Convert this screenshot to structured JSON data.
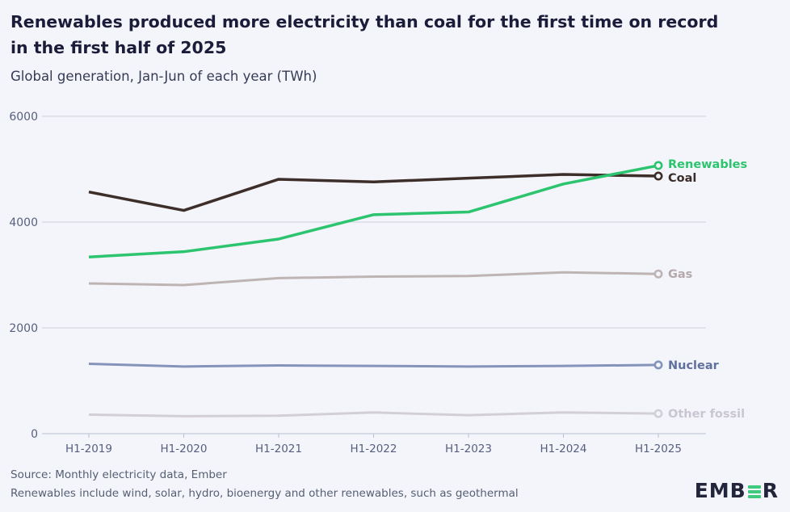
{
  "header": {
    "title_lines": [
      "Renewables produced more electricity than coal for the first time on record",
      "in the first half of 2025"
    ],
    "subtitle": "Global generation, Jan-Jun of each year (TWh)"
  },
  "chart_data": {
    "type": "line",
    "categories": [
      "H1-2019",
      "H1-2020",
      "H1-2021",
      "H1-2022",
      "H1-2023",
      "H1-2024",
      "H1-2025"
    ],
    "series": [
      {
        "name": "Renewables",
        "color": "#2cc46e",
        "label_color": "#2cc46e",
        "width": 3.5,
        "values": [
          3340,
          3440,
          3680,
          4140,
          4190,
          4720,
          5070
        ]
      },
      {
        "name": "Coal",
        "color": "#3d2e2a",
        "label_color": "#3a2d29",
        "width": 3.5,
        "values": [
          4570,
          4220,
          4810,
          4760,
          4830,
          4900,
          4870
        ]
      },
      {
        "name": "Gas",
        "color": "#beb4b4",
        "label_color": "#b3a9ab",
        "width": 3,
        "values": [
          2840,
          2810,
          2940,
          2970,
          2980,
          3050,
          3020
        ]
      },
      {
        "name": "Nuclear",
        "color": "#8393b9",
        "label_color": "#5f719e",
        "width": 3,
        "values": [
          1320,
          1270,
          1290,
          1280,
          1270,
          1280,
          1300
        ]
      },
      {
        "name": "Other fossil",
        "color": "#d3cfd7",
        "label_color": "#c9c6d1",
        "width": 3,
        "values": [
          360,
          330,
          340,
          400,
          350,
          400,
          380
        ]
      }
    ],
    "ylim": [
      0,
      6000
    ],
    "yticks": [
      0,
      2000,
      4000,
      6000
    ],
    "grid": true,
    "legend_position": "right-end-labels",
    "title": "Renewables produced more electricity than coal for the first time on record in the first half of 2025",
    "xlabel": "",
    "ylabel": "Global generation, Jan-Jun of each year (TWh)"
  },
  "axis_colors": {
    "grid": "#cdd1dd",
    "axis": "#b9bece",
    "tick_label": "#575f7e"
  },
  "footer": {
    "source": "Source: Monthly electricity data, Ember",
    "note": "Renewables include wind, solar, hydro, bioenergy and other renewables, such as geothermal"
  },
  "logo": {
    "left": "EMB",
    "right": "R",
    "bar_color": "#3ecb7e"
  },
  "background": "#f4f5fa"
}
